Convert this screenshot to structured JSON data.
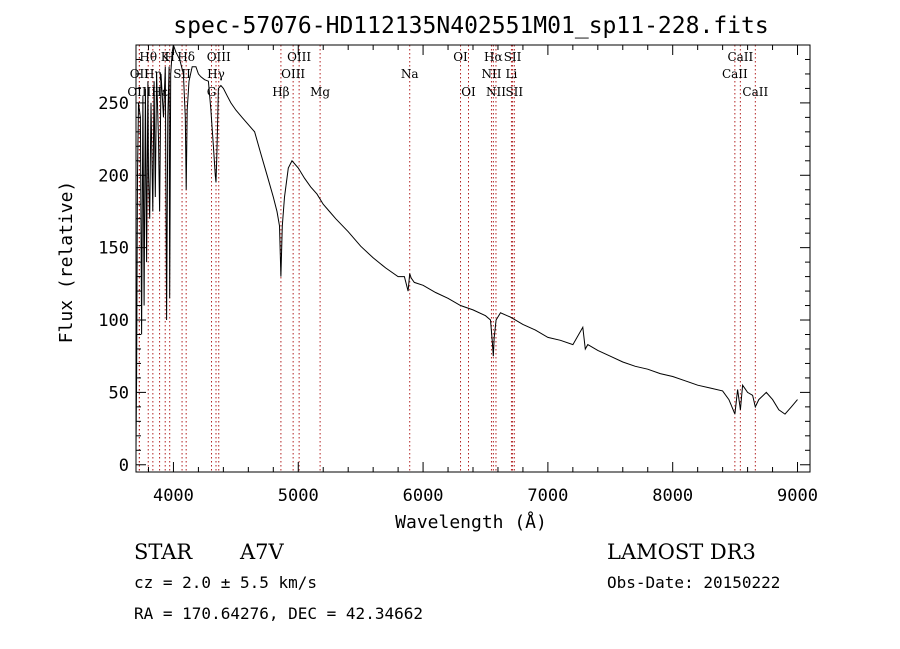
{
  "chart_data": {
    "type": "line",
    "title": "spec-57076-HD112135N402551M01_sp11-228.fits",
    "xlabel": "Wavelength (Å)",
    "ylabel": "Flux (relative)",
    "xlim": [
      3700,
      9100
    ],
    "ylim": [
      -5,
      290
    ],
    "xticks": [
      4000,
      5000,
      6000,
      7000,
      8000,
      9000
    ],
    "yticks": [
      0,
      50,
      100,
      150,
      200,
      250
    ],
    "spectrum": {
      "x": [
        3700,
        3705,
        3712,
        3720,
        3735,
        3745,
        3755,
        3765,
        3775,
        3785,
        3795,
        3800,
        3810,
        3820,
        3835,
        3845,
        3855,
        3865,
        3880,
        3889,
        3900,
        3920,
        3935,
        3945,
        3955,
        3965,
        3970,
        3978,
        3990,
        4000,
        4020,
        4050,
        4080,
        4095,
        4102,
        4110,
        4125,
        4150,
        4180,
        4200,
        4220,
        4250,
        4280,
        4300,
        4320,
        4335,
        4341,
        4348,
        4360,
        4380,
        4400,
        4430,
        4460,
        4500,
        4550,
        4600,
        4650,
        4700,
        4750,
        4800,
        4830,
        4850,
        4861,
        4872,
        4890,
        4920,
        4950,
        5000,
        5050,
        5100,
        5150,
        5200,
        5250,
        5300,
        5400,
        5500,
        5600,
        5700,
        5800,
        5850,
        5880,
        5893,
        5905,
        5930,
        6000,
        6100,
        6200,
        6300,
        6400,
        6500,
        6540,
        6555,
        6563,
        6570,
        6585,
        6620,
        6700,
        6800,
        6900,
        7000,
        7100,
        7200,
        7280,
        7300,
        7320,
        7400,
        7500,
        7600,
        7700,
        7800,
        7900,
        8000,
        8100,
        8200,
        8300,
        8400,
        8450,
        8498,
        8520,
        8542,
        8560,
        8600,
        8640,
        8662,
        8690,
        8750,
        8800,
        8850,
        8900,
        8950,
        9000
      ],
      "y": [
        10,
        60,
        200,
        250,
        240,
        90,
        255,
        110,
        260,
        140,
        265,
        200,
        170,
        250,
        175,
        265,
        185,
        270,
        225,
        175,
        270,
        240,
        275,
        100,
        240,
        275,
        115,
        270,
        285,
        290,
        285,
        280,
        270,
        240,
        190,
        245,
        265,
        275,
        275,
        270,
        268,
        266,
        265,
        245,
        220,
        200,
        195,
        215,
        260,
        262,
        260,
        255,
        250,
        245,
        240,
        235,
        230,
        215,
        200,
        185,
        175,
        165,
        130,
        165,
        185,
        205,
        210,
        205,
        198,
        192,
        187,
        180,
        175,
        170,
        161,
        151,
        143,
        136,
        130,
        130,
        120,
        132,
        129,
        126,
        124,
        119,
        115,
        110,
        107,
        103,
        100,
        85,
        75,
        88,
        100,
        105,
        102,
        97,
        93,
        88,
        86,
        83,
        95,
        80,
        83,
        79,
        75,
        71,
        68,
        66,
        63,
        61,
        58,
        55,
        53,
        51,
        45,
        35,
        52,
        38,
        55,
        50,
        48,
        40,
        45,
        50,
        45,
        38,
        35,
        40,
        45
      ]
    },
    "lines": [
      {
        "label": "Hθ",
        "wave": 3798,
        "row": 1
      },
      {
        "label": "OII",
        "wave": 3727,
        "row": 2
      },
      {
        "label": "OIII",
        "wave": 3727,
        "row": 3
      },
      {
        "label": "K",
        "wave": 3934,
        "row": 1
      },
      {
        "label": "H",
        "wave": 3970,
        "row": 1
      },
      {
        "label": "Hη",
        "wave": 3835,
        "row": 2
      },
      {
        "label": "Hε",
        "wave": 3889,
        "row": 3
      },
      {
        "label": "SII",
        "wave": 4069,
        "row": 2
      },
      {
        "label": "Hδ",
        "wave": 4102,
        "row": 1
      },
      {
        "label": "OIII",
        "wave": 4363,
        "row": 1
      },
      {
        "label": "Hγ",
        "wave": 4341,
        "row": 2
      },
      {
        "label": "G",
        "wave": 4305,
        "row": 3
      },
      {
        "label": "OIII",
        "wave": 5007,
        "row": 1
      },
      {
        "label": "OIII",
        "wave": 4959,
        "row": 2
      },
      {
        "label": "Hβ",
        "wave": 4861,
        "row": 3
      },
      {
        "label": "Mg",
        "wave": 5175,
        "row": 3
      },
      {
        "label": "Na",
        "wave": 5893,
        "row": 2
      },
      {
        "label": "OI",
        "wave": 6300,
        "row": 1
      },
      {
        "label": "OI",
        "wave": 6364,
        "row": 3
      },
      {
        "label": "Hα",
        "wave": 6563,
        "row": 1
      },
      {
        "label": "NII",
        "wave": 6548,
        "row": 2
      },
      {
        "label": "NII",
        "wave": 6584,
        "row": 3
      },
      {
        "label": "SII",
        "wave": 6717,
        "row": 1
      },
      {
        "label": "Li",
        "wave": 6708,
        "row": 2
      },
      {
        "label": "SII",
        "wave": 6731,
        "row": 3
      },
      {
        "label": "CaII",
        "wave": 8542,
        "row": 1
      },
      {
        "label": "CaII",
        "wave": 8498,
        "row": 2
      },
      {
        "label": "CaII",
        "wave": 8662,
        "row": 3
      }
    ]
  },
  "info": {
    "object_class": "STAR",
    "subclass": "A7V",
    "survey": "LAMOST DR3",
    "cz": "cz = 2.0 ± 5.5 km/s",
    "obs_date": "Obs-Date: 20150222",
    "coords": "RA = 170.64276, DEC =  42.34662"
  }
}
